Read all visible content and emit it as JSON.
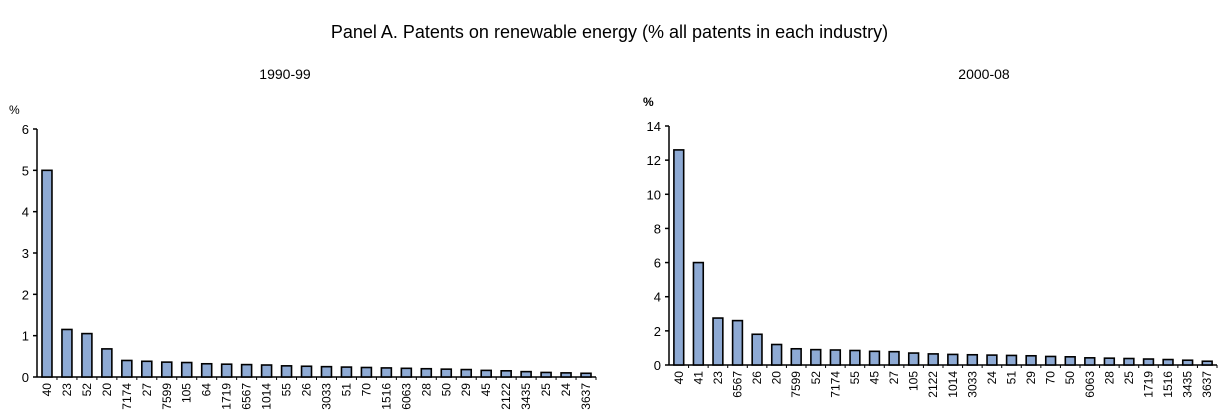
{
  "title": "Panel A. Patents on renewable energy (% all patents in each industry)",
  "colors": {
    "bar": "#8eaad4",
    "bar_stroke": "#000000",
    "axis": "#000000"
  },
  "chart_data": [
    {
      "type": "bar",
      "subtitle": "1990-99",
      "ylabel": "%",
      "ylim": [
        0,
        6
      ],
      "yticks": [
        0,
        1,
        2,
        3,
        4,
        5,
        6
      ],
      "grid": false,
      "categories": [
        "40",
        "23",
        "52",
        "20",
        "7174",
        "27",
        "7599",
        "105",
        "64",
        "1719",
        "6567",
        "1014",
        "55",
        "26",
        "3033",
        "51",
        "70",
        "1516",
        "6063",
        "28",
        "50",
        "29",
        "45",
        "2122",
        "3435",
        "25",
        "24",
        "3637"
      ],
      "values": [
        5.0,
        1.15,
        1.05,
        0.68,
        0.4,
        0.38,
        0.36,
        0.35,
        0.32,
        0.31,
        0.3,
        0.29,
        0.27,
        0.26,
        0.25,
        0.24,
        0.23,
        0.22,
        0.21,
        0.2,
        0.19,
        0.18,
        0.16,
        0.15,
        0.13,
        0.11,
        0.1,
        0.09
      ]
    },
    {
      "type": "bar",
      "subtitle": "2000-08",
      "ylabel": "%",
      "ylim": [
        0,
        14
      ],
      "yticks": [
        0,
        2,
        4,
        6,
        8,
        10,
        12,
        14
      ],
      "grid": false,
      "categories": [
        "40",
        "41",
        "23",
        "6567",
        "26",
        "20",
        "7599",
        "52",
        "7174",
        "55",
        "45",
        "27",
        "105",
        "2122",
        "1014",
        "3033",
        "24",
        "51",
        "29",
        "70",
        "50",
        "6063",
        "28",
        "25",
        "1719",
        "1516",
        "3435",
        "3637"
      ],
      "values": [
        12.6,
        6.0,
        2.75,
        2.6,
        1.8,
        1.2,
        0.95,
        0.9,
        0.88,
        0.85,
        0.8,
        0.78,
        0.7,
        0.65,
        0.62,
        0.6,
        0.58,
        0.56,
        0.54,
        0.5,
        0.48,
        0.42,
        0.4,
        0.38,
        0.35,
        0.32,
        0.28,
        0.22
      ]
    }
  ]
}
